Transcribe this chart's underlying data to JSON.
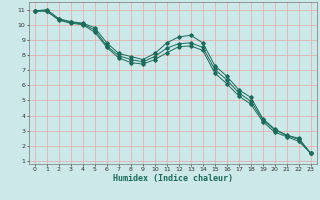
{
  "title": "",
  "xlabel": "Humidex (Indice chaleur)",
  "ylabel": "",
  "xlim": [
    -0.5,
    23.5
  ],
  "ylim": [
    0.8,
    11.5
  ],
  "xticks": [
    0,
    1,
    2,
    3,
    4,
    5,
    6,
    7,
    8,
    9,
    10,
    11,
    12,
    13,
    14,
    15,
    16,
    17,
    18,
    19,
    20,
    21,
    22,
    23
  ],
  "yticks": [
    1,
    2,
    3,
    4,
    5,
    6,
    7,
    8,
    9,
    10,
    11
  ],
  "background_color": "#cce8e8",
  "grid_color": "#e8aaaa",
  "line_color": "#1a6b5a",
  "tick_fontsize": 4.5,
  "xlabel_fontsize": 6.0,
  "series": [
    [
      10.9,
      11.0,
      10.4,
      10.2,
      10.1,
      9.8,
      8.8,
      8.1,
      7.9,
      7.7,
      8.1,
      8.8,
      9.2,
      9.3,
      8.8,
      7.3,
      6.6,
      5.7,
      5.2,
      3.8,
      3.1,
      2.7,
      2.5,
      1.5
    ],
    [
      10.9,
      10.9,
      10.35,
      10.15,
      10.05,
      9.65,
      8.6,
      7.95,
      7.7,
      7.55,
      7.9,
      8.45,
      8.75,
      8.8,
      8.5,
      7.05,
      6.35,
      5.5,
      4.95,
      3.72,
      3.05,
      2.68,
      2.42,
      1.5
    ],
    [
      10.9,
      10.9,
      10.3,
      10.1,
      10.0,
      9.5,
      8.5,
      7.8,
      7.5,
      7.4,
      7.7,
      8.15,
      8.55,
      8.6,
      8.3,
      6.8,
      6.1,
      5.3,
      4.75,
      3.6,
      2.9,
      2.6,
      2.3,
      1.5
    ]
  ]
}
